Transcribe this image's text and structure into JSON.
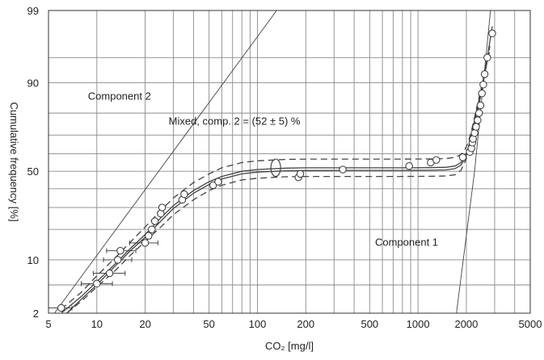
{
  "chart_data": {
    "type": "scatter",
    "x_scale": "log",
    "y_scale": "normal-probability",
    "xlabel": "CO₂ [mg/l]",
    "ylabel": "Cumulative frequency [%]",
    "xlim": [
      5,
      5000
    ],
    "ylim": [
      2,
      99
    ],
    "x_ticks": [
      5,
      10,
      20,
      50,
      100,
      200,
      500,
      1000,
      2000,
      5000
    ],
    "y_ticks": [
      2,
      10,
      50,
      90,
      99
    ],
    "x_minor_grid": [
      30,
      40,
      60,
      70,
      80,
      90,
      300,
      400,
      600,
      700,
      800,
      900,
      3000,
      4000
    ],
    "y_minor_grid": [
      5,
      20,
      30,
      40,
      60,
      70,
      80,
      95
    ],
    "grid": true,
    "annotations": [
      {
        "text": "Component 2",
        "x": 8.8,
        "y": 85
      },
      {
        "text": "Mixed, comp. 2 = (52 ± 5) %",
        "x": 28,
        "y": 75
      },
      {
        "text": "Component 1",
        "x": 540,
        "y": 14
      }
    ],
    "observations": [
      {
        "x": 6.0,
        "y": 2.4,
        "xerr": [
          5.0,
          7.0
        ]
      },
      {
        "x": 10.0,
        "y": 5.2,
        "xerr": [
          8.0,
          12.5
        ]
      },
      {
        "x": 12.0,
        "y": 7.0,
        "xerr": [
          9.5,
          15.0
        ]
      },
      {
        "x": 13.5,
        "y": 10.0,
        "xerr": [
          11.0,
          16.5
        ]
      },
      {
        "x": 14.0,
        "y": 12.5,
        "xerr": [
          11.5,
          17.5
        ]
      },
      {
        "x": 20.0,
        "y": 15.0,
        "xerr": [
          16.0,
          24.0
        ]
      },
      {
        "x": 21.0,
        "y": 17.5
      },
      {
        "x": 22.0,
        "y": 20.0
      },
      {
        "x": 23.0,
        "y": 23.5
      },
      {
        "x": 25.0,
        "y": 27.0
      },
      {
        "x": 25.5,
        "y": 30.0
      },
      {
        "x": 34.0,
        "y": 34.0
      },
      {
        "x": 35.0,
        "y": 37.0
      },
      {
        "x": 53.0,
        "y": 42.0
      },
      {
        "x": 57.0,
        "y": 44.0
      },
      {
        "x": 180.0,
        "y": 46.5
      },
      {
        "x": 185.0,
        "y": 48.5
      },
      {
        "x": 340.0,
        "y": 51.0
      },
      {
        "x": 880.0,
        "y": 53.0
      },
      {
        "x": 1200.0,
        "y": 55.0
      },
      {
        "x": 1300.0,
        "y": 56.5
      },
      {
        "x": 1900.0,
        "y": 58.0
      },
      {
        "x": 2100.0,
        "y": 61.0
      },
      {
        "x": 2150.0,
        "y": 63.0
      },
      {
        "x": 2180.0,
        "y": 66.0
      },
      {
        "x": 2200.0,
        "y": 68.0
      },
      {
        "x": 2250.0,
        "y": 71.0
      },
      {
        "x": 2300.0,
        "y": 74.0
      },
      {
        "x": 2350.0,
        "y": 77.0
      },
      {
        "x": 2400.0,
        "y": 80.0
      },
      {
        "x": 2450.0,
        "y": 83.0
      },
      {
        "x": 2500.0,
        "y": 87.0
      },
      {
        "x": 2550.0,
        "y": 89.5
      },
      {
        "x": 2600.0,
        "y": 92.0
      },
      {
        "x": 2700.0,
        "y": 95.0
      },
      {
        "x": 2900.0,
        "y": 97.7
      }
    ],
    "lines": [
      {
        "id": "component-2",
        "x": [
          5,
          140
        ],
        "y": [
          1.5,
          99.2
        ]
      },
      {
        "id": "component-1",
        "x": [
          1710,
          2250,
          2850
        ],
        "y": [
          1.5,
          50,
          99.2
        ]
      }
    ],
    "mixture_curves": [
      {
        "id": "fit",
        "style": "solid",
        "x": [
          6,
          8,
          10,
          13,
          16,
          20,
          25,
          30,
          40,
          50,
          60,
          80,
          100,
          150,
          200,
          400,
          800,
          1200,
          1500,
          1700,
          1850,
          1950,
          2050,
          2150,
          2300,
          2500,
          2700,
          2900
        ],
        "y": [
          2,
          3.5,
          5.5,
          9,
          13,
          18,
          25,
          31,
          39,
          44,
          47,
          50,
          51,
          51.8,
          52,
          52,
          52,
          52.1,
          52.3,
          53,
          55,
          58,
          63,
          70,
          80,
          89,
          95,
          98.2
        ]
      },
      {
        "id": "fit-inner",
        "style": "solid",
        "x": [
          6.5,
          8,
          10,
          13,
          16,
          20,
          25,
          30,
          40,
          50,
          60,
          80,
          100,
          150,
          200,
          400,
          800,
          1200,
          1500,
          1700,
          1850,
          1950,
          2050,
          2150,
          2300,
          2500,
          2700
        ],
        "y": [
          2,
          3.2,
          5,
          8.5,
          12.3,
          17,
          23.5,
          29.5,
          37.5,
          42.5,
          45.5,
          48.5,
          49.5,
          50.2,
          50.4,
          50.5,
          50.5,
          50.6,
          50.8,
          51.5,
          53.5,
          57,
          62,
          69,
          79.5,
          88.5,
          94.5
        ]
      },
      {
        "id": "upper-bound",
        "style": "dashed",
        "x": [
          6,
          8,
          10,
          13,
          16,
          20,
          25,
          30,
          40,
          50,
          60,
          80,
          100,
          150,
          200,
          400,
          800,
          1200,
          1500,
          1700,
          1850,
          1950,
          2050,
          2150,
          2300,
          2500,
          2800
        ],
        "y": [
          2.3,
          4,
          6.5,
          10.5,
          15,
          21,
          28.5,
          35,
          43.5,
          48.5,
          52,
          55,
          56,
          56.8,
          57,
          57,
          57,
          57.1,
          57.3,
          58,
          59.5,
          62,
          66,
          72,
          81,
          89.5,
          96
        ]
      },
      {
        "id": "lower-bound",
        "style": "dashed",
        "x": [
          6.5,
          8,
          10,
          13,
          16,
          20,
          25,
          30,
          40,
          50,
          60,
          80,
          100,
          150,
          200,
          400,
          800,
          1200,
          1500,
          1700,
          1850,
          1950,
          2050,
          2150,
          2300,
          2500,
          2800
        ],
        "y": [
          2,
          3,
          4.7,
          7.5,
          11,
          15.5,
          21,
          26.5,
          34,
          39,
          42,
          45,
          46,
          46.8,
          47,
          47,
          47,
          47.1,
          47.3,
          48,
          50.5,
          55,
          60,
          67,
          78,
          88,
          96.5
        ]
      }
    ],
    "error_ellipse": {
      "x": 130,
      "y": 52,
      "y_range": [
        47,
        57
      ]
    }
  },
  "colors": {
    "grid": "#8a8a8a",
    "curve": "#444444",
    "marker_fill": "#ffffff",
    "marker_stroke": "#333333",
    "frame": "#333333"
  }
}
